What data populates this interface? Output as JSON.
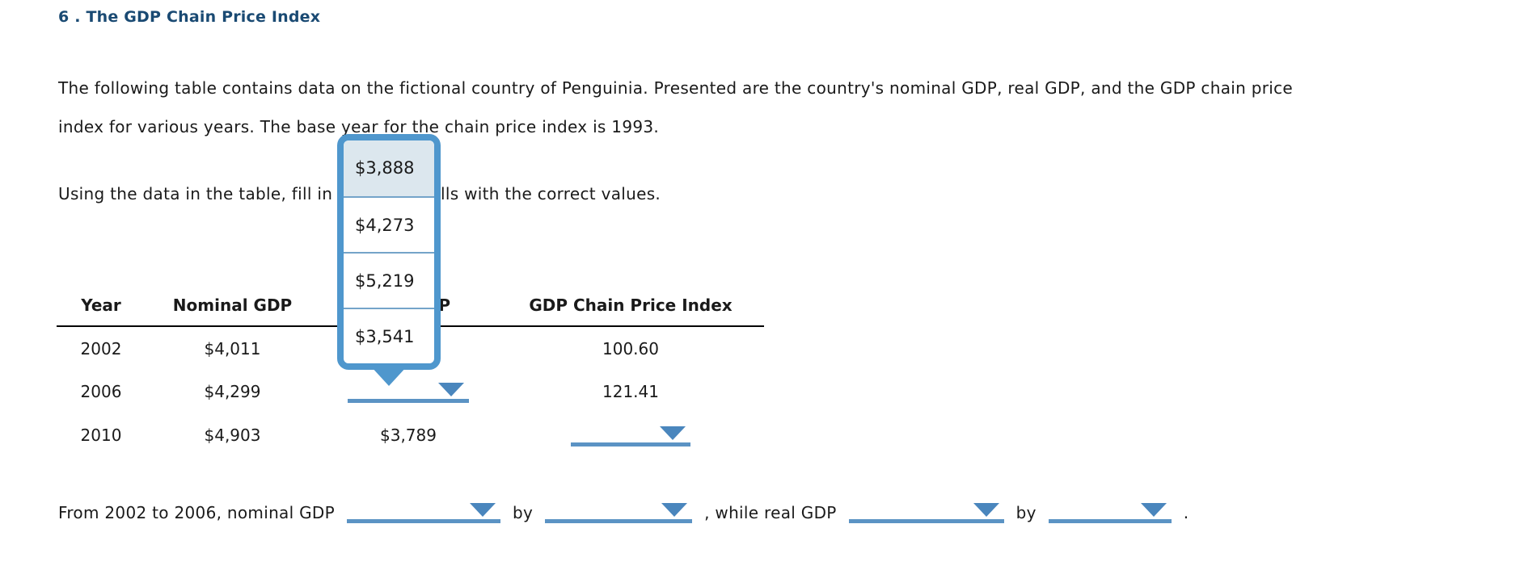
{
  "title": "6 . The GDP Chain Price Index",
  "intro": {
    "line1": "The following table contains data on the fictional country of Penguinia. Presented are the country's nominal GDP, real GDP, and the GDP chain price",
    "line2": "index for various years. The base year for the chain price index is 1993."
  },
  "instruction": "Using the data in the table, fill in the blank cells with the correct values.",
  "dropdown": {
    "options": [
      "$3,888",
      "$4,273",
      "$5,219",
      "$3,541"
    ],
    "highlighted_index": 0
  },
  "table": {
    "headers": [
      "Year",
      "Nominal GDP",
      "Real GDP",
      "GDP Chain Price Index"
    ],
    "rows": [
      {
        "year": "2002",
        "nominal": "$4,011",
        "real": "",
        "chain": "100.60"
      },
      {
        "year": "2006",
        "nominal": "$4,299",
        "real": "",
        "chain": "121.41"
      },
      {
        "year": "2010",
        "nominal": "$4,903",
        "real": "$3,789",
        "chain": ""
      }
    ]
  },
  "sentence": {
    "part1": "From 2002 to 2006, nominal GDP",
    "part2": "by",
    "part3": ", while real GDP",
    "part4": "by",
    "part5": "."
  },
  "colors": {
    "title_navy": "#1a4a73",
    "accent_blue": "#4f97cd",
    "underline_blue": "#5b93c4",
    "caret_blue": "#4a86bd",
    "option_highlight": "#dce7ee"
  }
}
